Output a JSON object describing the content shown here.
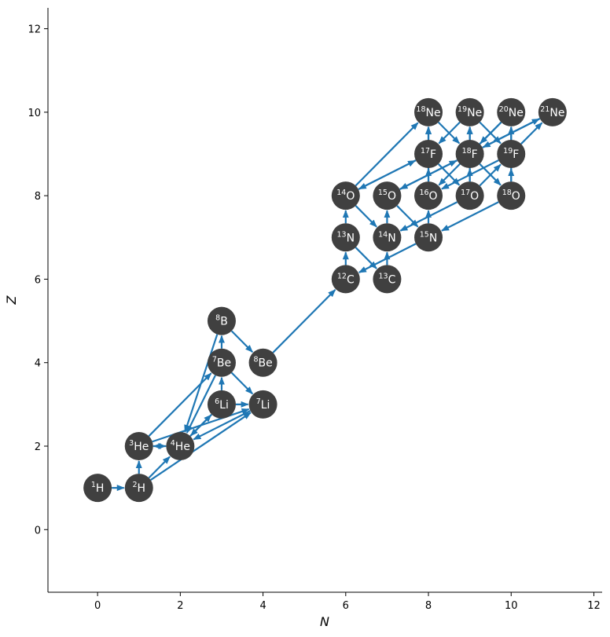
{
  "chart_data": {
    "type": "network",
    "xlabel": "N",
    "ylabel": "Z",
    "xlim": [
      -1.2,
      12.2
    ],
    "ylim": [
      -1.5,
      12.5
    ],
    "xticks": [
      0,
      2,
      4,
      6,
      8,
      10,
      12
    ],
    "yticks": [
      0,
      2,
      4,
      6,
      8,
      10,
      12
    ],
    "colors": {
      "node": "#404040",
      "edge": "#1f77b4",
      "node_text": "#ffffff"
    },
    "nodes": [
      {
        "id": "p",
        "mass": "1",
        "el": "H",
        "N": 0,
        "Z": 1
      },
      {
        "id": "d",
        "mass": "2",
        "el": "H",
        "N": 1,
        "Z": 1
      },
      {
        "id": "he3",
        "mass": "3",
        "el": "He",
        "N": 1,
        "Z": 2
      },
      {
        "id": "he4",
        "mass": "4",
        "el": "He",
        "N": 2,
        "Z": 2
      },
      {
        "id": "li6",
        "mass": "6",
        "el": "Li",
        "N": 3,
        "Z": 3
      },
      {
        "id": "li7",
        "mass": "7",
        "el": "Li",
        "N": 4,
        "Z": 3
      },
      {
        "id": "be7",
        "mass": "7",
        "el": "Be",
        "N": 3,
        "Z": 4
      },
      {
        "id": "be8",
        "mass": "8",
        "el": "Be",
        "N": 4,
        "Z": 4
      },
      {
        "id": "b8",
        "mass": "8",
        "el": "B",
        "N": 3,
        "Z": 5
      },
      {
        "id": "c12",
        "mass": "12",
        "el": "C",
        "N": 6,
        "Z": 6
      },
      {
        "id": "c13",
        "mass": "13",
        "el": "C",
        "N": 7,
        "Z": 6
      },
      {
        "id": "n13",
        "mass": "13",
        "el": "N",
        "N": 6,
        "Z": 7
      },
      {
        "id": "n14",
        "mass": "14",
        "el": "N",
        "N": 7,
        "Z": 7
      },
      {
        "id": "n15",
        "mass": "15",
        "el": "N",
        "N": 8,
        "Z": 7
      },
      {
        "id": "o14",
        "mass": "14",
        "el": "O",
        "N": 6,
        "Z": 8
      },
      {
        "id": "o15",
        "mass": "15",
        "el": "O",
        "N": 7,
        "Z": 8
      },
      {
        "id": "o16",
        "mass": "16",
        "el": "O",
        "N": 8,
        "Z": 8
      },
      {
        "id": "o17",
        "mass": "17",
        "el": "O",
        "N": 9,
        "Z": 8
      },
      {
        "id": "o18",
        "mass": "18",
        "el": "O",
        "N": 10,
        "Z": 8
      },
      {
        "id": "f17",
        "mass": "17",
        "el": "F",
        "N": 8,
        "Z": 9
      },
      {
        "id": "f18",
        "mass": "18",
        "el": "F",
        "N": 9,
        "Z": 9
      },
      {
        "id": "f19",
        "mass": "19",
        "el": "F",
        "N": 10,
        "Z": 9
      },
      {
        "id": "ne18",
        "mass": "18",
        "el": "Ne",
        "N": 8,
        "Z": 10
      },
      {
        "id": "ne19",
        "mass": "19",
        "el": "Ne",
        "N": 9,
        "Z": 10
      },
      {
        "id": "ne20",
        "mass": "20",
        "el": "Ne",
        "N": 10,
        "Z": 10
      },
      {
        "id": "ne21",
        "mass": "21",
        "el": "Ne",
        "N": 11,
        "Z": 10
      }
    ],
    "edges": [
      [
        "p",
        "d"
      ],
      [
        "d",
        "he3"
      ],
      [
        "d",
        "he4"
      ],
      [
        "he3",
        "he4"
      ],
      [
        "he3",
        "be7"
      ],
      [
        "he3",
        "li7"
      ],
      [
        "he4",
        "he3"
      ],
      [
        "he4",
        "li6"
      ],
      [
        "d",
        "li7"
      ],
      [
        "li6",
        "he4"
      ],
      [
        "li6",
        "be7"
      ],
      [
        "li6",
        "li7"
      ],
      [
        "li7",
        "he4"
      ],
      [
        "be7",
        "he4"
      ],
      [
        "be7",
        "b8"
      ],
      [
        "be7",
        "li7"
      ],
      [
        "b8",
        "he4"
      ],
      [
        "b8",
        "be8"
      ],
      [
        "be8",
        "c12"
      ],
      [
        "c12",
        "n13"
      ],
      [
        "n13",
        "c13"
      ],
      [
        "c13",
        "n14"
      ],
      [
        "n14",
        "o15"
      ],
      [
        "o15",
        "n15"
      ],
      [
        "n15",
        "c12"
      ],
      [
        "n13",
        "o14"
      ],
      [
        "o14",
        "n14"
      ],
      [
        "n15",
        "o16"
      ],
      [
        "o16",
        "f17"
      ],
      [
        "f17",
        "o17"
      ],
      [
        "o17",
        "n14"
      ],
      [
        "o17",
        "f18"
      ],
      [
        "f18",
        "o18"
      ],
      [
        "o18",
        "n15"
      ],
      [
        "o18",
        "f19"
      ],
      [
        "f19",
        "o16"
      ],
      [
        "o14",
        "f17"
      ],
      [
        "o15",
        "f18"
      ],
      [
        "o16",
        "ne18"
      ],
      [
        "o17",
        "ne19"
      ],
      [
        "o18",
        "ne20"
      ],
      [
        "o14",
        "ne18"
      ],
      [
        "f17",
        "ne18"
      ],
      [
        "ne18",
        "f18"
      ],
      [
        "f18",
        "ne19"
      ],
      [
        "ne19",
        "f19"
      ],
      [
        "f19",
        "ne20"
      ],
      [
        "ne20",
        "f18"
      ],
      [
        "f18",
        "o15"
      ],
      [
        "f17",
        "o14"
      ],
      [
        "ne19",
        "f17"
      ],
      [
        "ne20",
        "o16"
      ],
      [
        "ne21",
        "f18"
      ],
      [
        "f19",
        "ne21"
      ],
      [
        "o17",
        "f19"
      ],
      [
        "f18",
        "ne21"
      ]
    ]
  }
}
